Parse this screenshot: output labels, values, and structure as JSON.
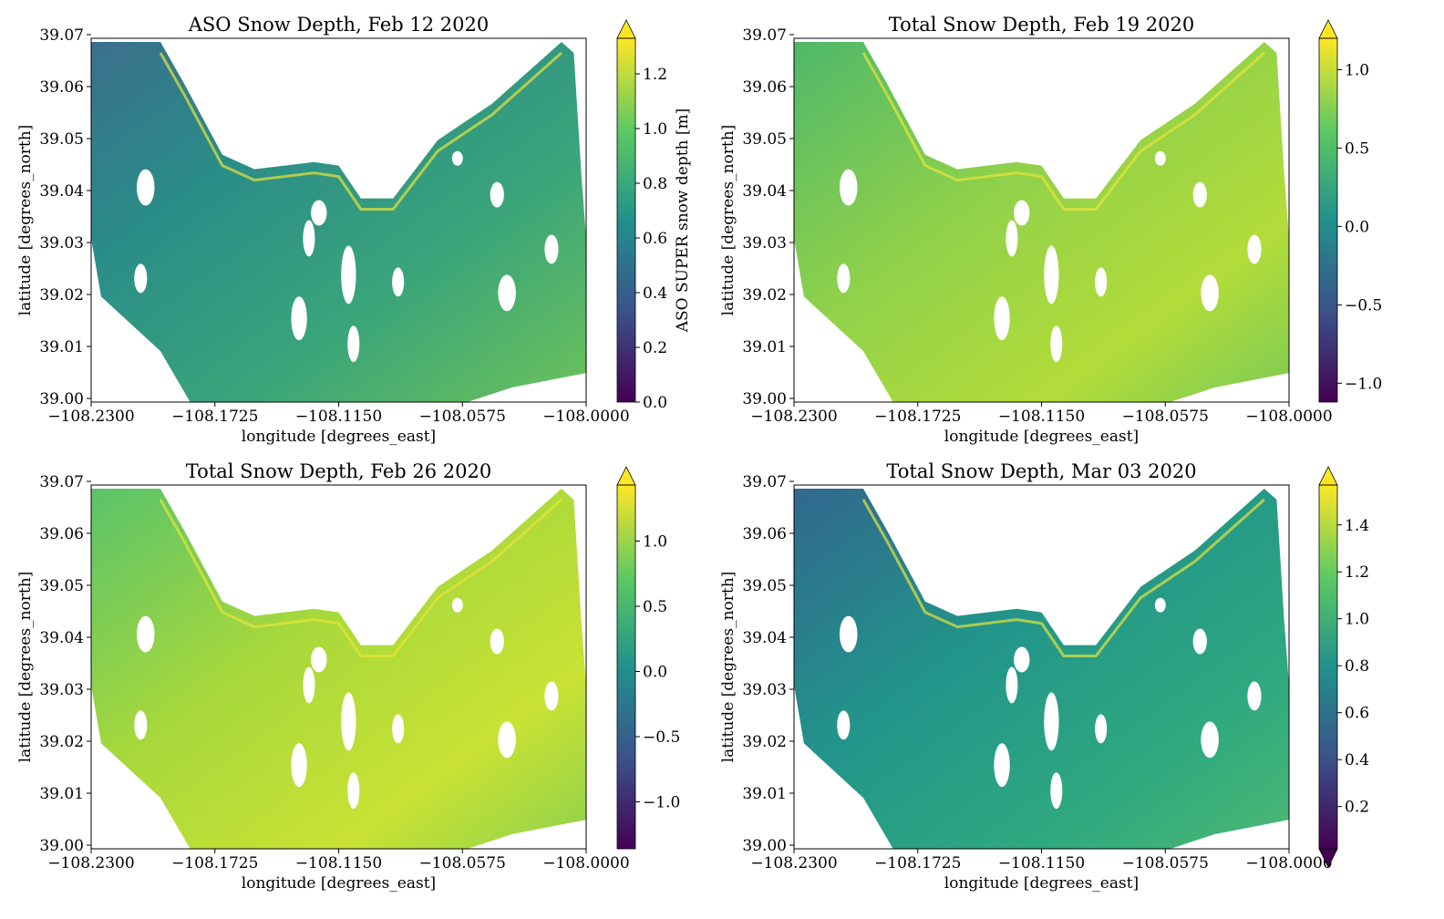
{
  "figure": {
    "xlabel": "longitude [degrees_east]",
    "ylabel": "latitude [degrees_north]",
    "x_ticks": [
      "−108.2300",
      "−108.1725",
      "−108.1150",
      "−108.0575",
      "−108.0000"
    ],
    "y_ticks": [
      "39.00",
      "39.01",
      "39.02",
      "39.03",
      "39.04",
      "39.05",
      "39.06",
      "39.07"
    ],
    "colormap": "viridis",
    "colormap_stops": [
      "#440154",
      "#3b528b",
      "#21918c",
      "#5ec962",
      "#fde725"
    ]
  },
  "chart_data": [
    {
      "type": "heatmap",
      "title": "ASO Snow Depth, Feb 12 2020",
      "xlabel": "longitude [degrees_east]",
      "ylabel": "latitude [degrees_north]",
      "xlim": [
        -108.23,
        -108.0
      ],
      "ylim": [
        39.0,
        39.07
      ],
      "colorbar": {
        "label": "ASO SUPER snow depth [m]",
        "range": [
          0.0,
          1.33
        ],
        "ticks": [
          0.0,
          0.2,
          0.4,
          0.6,
          0.8,
          1.0,
          1.2
        ],
        "tick_labels": [
          "0.0",
          "0.2",
          "0.4",
          "0.6",
          "0.8",
          "1.0",
          "1.2"
        ],
        "extend": "max"
      }
    },
    {
      "type": "heatmap",
      "title": "Total Snow Depth, Feb 19 2020",
      "xlabel": "longitude [degrees_east]",
      "ylabel": "latitude [degrees_north]",
      "xlim": [
        -108.23,
        -108.0
      ],
      "ylim": [
        39.0,
        39.07
      ],
      "colorbar": {
        "label": "",
        "range": [
          -1.12,
          1.2
        ],
        "ticks": [
          -1.0,
          -0.5,
          0.0,
          0.5,
          1.0
        ],
        "tick_labels": [
          "−1.0",
          "−0.5",
          "0.0",
          "0.5",
          "1.0"
        ],
        "extend": "max"
      }
    },
    {
      "type": "heatmap",
      "title": "Total Snow Depth, Feb 26 2020",
      "xlabel": "longitude [degrees_east]",
      "ylabel": "latitude [degrees_north]",
      "xlim": [
        -108.23,
        -108.0
      ],
      "ylim": [
        39.0,
        39.07
      ],
      "colorbar": {
        "label": "",
        "range": [
          -1.36,
          1.43
        ],
        "ticks": [
          -1.0,
          -0.5,
          0.0,
          0.5,
          1.0
        ],
        "tick_labels": [
          "−1.0",
          "−0.5",
          "0.0",
          "0.5",
          "1.0"
        ],
        "extend": "max"
      }
    },
    {
      "type": "heatmap",
      "title": "Total Snow Depth, Mar 03 2020",
      "xlabel": "longitude [degrees_east]",
      "ylabel": "latitude [degrees_north]",
      "xlim": [
        -108.23,
        -108.0
      ],
      "ylim": [
        39.0,
        39.07
      ],
      "colorbar": {
        "label": "",
        "range": [
          0.02,
          1.57
        ],
        "ticks": [
          0.2,
          0.4,
          0.6,
          0.8,
          1.0,
          1.2,
          1.4
        ],
        "tick_labels": [
          "0.2",
          "0.4",
          "0.6",
          "0.8",
          "1.0",
          "1.2",
          "1.4"
        ],
        "extend": "both"
      }
    }
  ]
}
